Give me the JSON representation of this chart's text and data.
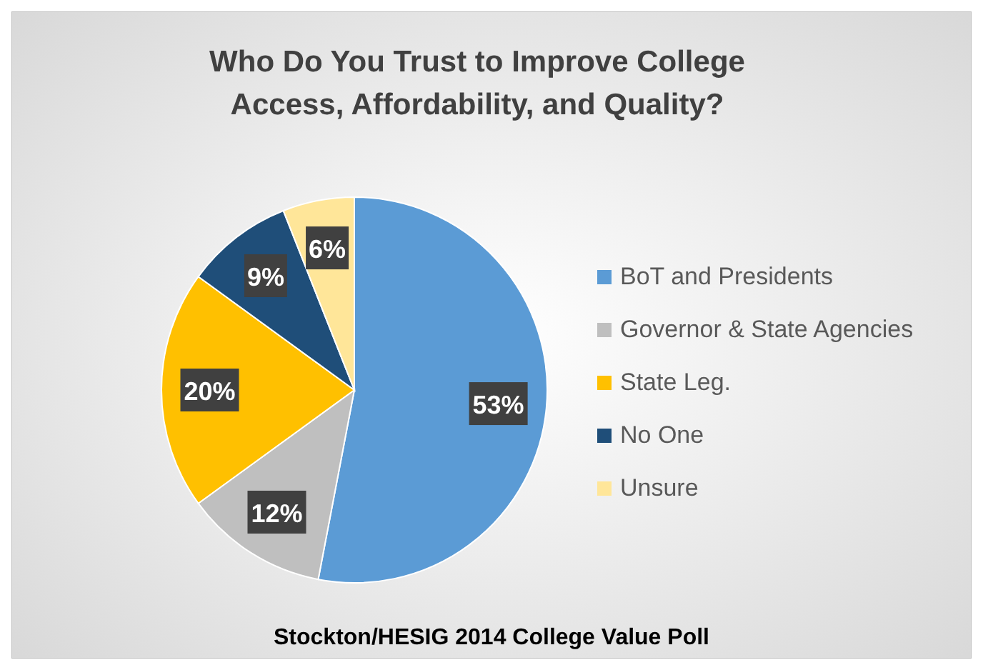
{
  "chart_data": {
    "type": "pie",
    "title": "Who Do You Trust to Improve College Access, Affordability, and Quality?",
    "categories": [
      "BoT and Presidents",
      "Governor & State Agencies",
      "State Leg.",
      "No One",
      "Unsure"
    ],
    "values": [
      53,
      12,
      20,
      9,
      6
    ],
    "colors": [
      "#5b9bd5",
      "#bfbfbf",
      "#ffc000",
      "#1f4e79",
      "#ffe699"
    ],
    "value_labels": [
      "53%",
      "12%",
      "20%",
      "9%",
      "6%"
    ],
    "legend": "right",
    "annotations": [
      "Stockton/HESIG 2014 College Value Poll"
    ]
  }
}
